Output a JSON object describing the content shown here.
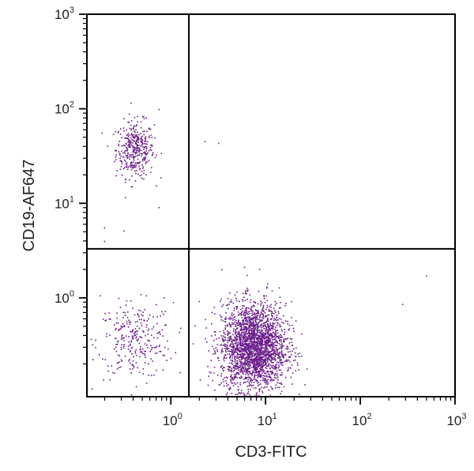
{
  "chart_data": {
    "type": "scatter",
    "title": "",
    "xlabel": "CD3-FITC",
    "ylabel": "CD19-AF647",
    "x_scale": "log",
    "y_scale": "log",
    "xlim": [
      0.13,
      1000
    ],
    "ylim": [
      0.09,
      1000
    ],
    "x_ticks": [
      {
        "value": 1,
        "base": "10",
        "exp": "0"
      },
      {
        "value": 10,
        "base": "10",
        "exp": "1"
      },
      {
        "value": 100,
        "base": "10",
        "exp": "2"
      },
      {
        "value": 1000,
        "base": "10",
        "exp": "3"
      }
    ],
    "y_ticks": [
      {
        "value": 1,
        "base": "10",
        "exp": "0"
      },
      {
        "value": 10,
        "base": "10",
        "exp": "1"
      },
      {
        "value": 100,
        "base": "10",
        "exp": "2"
      },
      {
        "value": 1000,
        "base": "10",
        "exp": "3"
      }
    ],
    "quadrant_gates": {
      "x": 1.55,
      "y": 3.3
    },
    "grid": false,
    "point_color": "#6a1b8a",
    "clusters": [
      {
        "center_x": 0.42,
        "center_y": 37,
        "spread_x_log": 0.1,
        "spread_y_log": 0.15,
        "count": 380
      },
      {
        "center_x": 0.42,
        "center_y": 0.35,
        "spread_x_log": 0.2,
        "spread_y_log": 0.2,
        "count": 280
      },
      {
        "center_x": 7.5,
        "center_y": 0.3,
        "spread_x_log": 0.17,
        "spread_y_log": 0.23,
        "count": 2500
      }
    ],
    "points": [
      [
        0.55,
        80
      ],
      [
        0.75,
        98
      ],
      [
        0.2,
        5.5
      ],
      [
        0.75,
        9
      ],
      [
        0.32,
        5.1
      ],
      [
        2.3,
        45
      ],
      [
        3.2,
        43
      ],
      [
        0.2,
        3.95
      ],
      [
        6,
        2.1
      ],
      [
        5,
        1.15
      ],
      [
        280,
        0.85
      ],
      [
        500,
        1.7
      ],
      [
        0.18,
        1.05
      ],
      [
        0.85,
        1.0
      ]
    ]
  }
}
